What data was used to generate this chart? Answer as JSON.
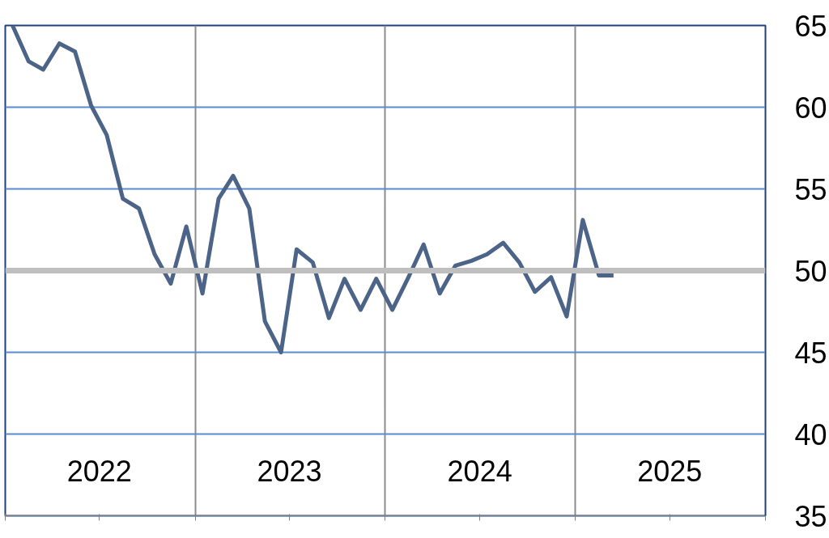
{
  "chart_data": {
    "type": "line",
    "x": [
      "2022-01-15",
      "2022-02-15",
      "2022-03-15",
      "2022-04-15",
      "2022-05-15",
      "2022-06-15",
      "2022-07-15",
      "2022-08-15",
      "2022-09-15",
      "2022-10-15",
      "2022-11-15",
      "2022-12-15",
      "2023-01-15",
      "2023-02-15",
      "2023-03-15",
      "2023-04-15",
      "2023-05-15",
      "2023-06-15",
      "2023-07-15",
      "2023-08-15",
      "2023-09-15",
      "2023-10-15",
      "2023-11-15",
      "2023-12-15",
      "2024-01-15",
      "2024-02-15",
      "2024-03-15",
      "2024-04-15",
      "2024-05-15",
      "2024-06-15",
      "2024-07-15",
      "2024-08-15",
      "2024-09-15",
      "2024-10-15",
      "2024-11-15",
      "2024-12-15",
      "2025-01-15",
      "2025-02-15",
      "2025-03-15"
    ],
    "series": [
      {
        "color": "#4d6489",
        "values": [
          65.0,
          62.8,
          62.3,
          63.9,
          63.4,
          60.1,
          58.3,
          54.4,
          53.8,
          51.0,
          49.2,
          52.7,
          48.6,
          54.4,
          55.8,
          53.8,
          46.9,
          45.0,
          51.3,
          50.5,
          47.1,
          49.5,
          47.6,
          49.5,
          47.6,
          49.6,
          51.6,
          48.6,
          50.3,
          50.6,
          51.0,
          51.7,
          50.5,
          48.7,
          49.6,
          47.2,
          53.1,
          49.7,
          49.7
        ]
      }
    ],
    "xlim": [
      "2022-01-01",
      "2026-01-01"
    ],
    "xticks": [
      {
        "value": "2022-01-01",
        "label": null
      },
      {
        "value": "2022-07-01",
        "label": "2022"
      },
      {
        "value": "2023-01-01",
        "label": null
      },
      {
        "value": "2023-07-01",
        "label": "2023"
      },
      {
        "value": "2024-01-01",
        "label": null
      },
      {
        "value": "2024-07-01",
        "label": "2024"
      },
      {
        "value": "2025-01-01",
        "label": null
      },
      {
        "value": "2025-07-01",
        "label": "2025"
      },
      {
        "value": "2026-01-01",
        "label": null
      }
    ],
    "ylim": [
      35,
      65
    ],
    "yticks": [
      35,
      40,
      45,
      50,
      55,
      60,
      65
    ],
    "ref_lines": [
      {
        "axis": "y",
        "value": 50,
        "color": "#bfbfbf"
      }
    ],
    "grid": true,
    "marker": "none",
    "line_style": "solid"
  }
}
